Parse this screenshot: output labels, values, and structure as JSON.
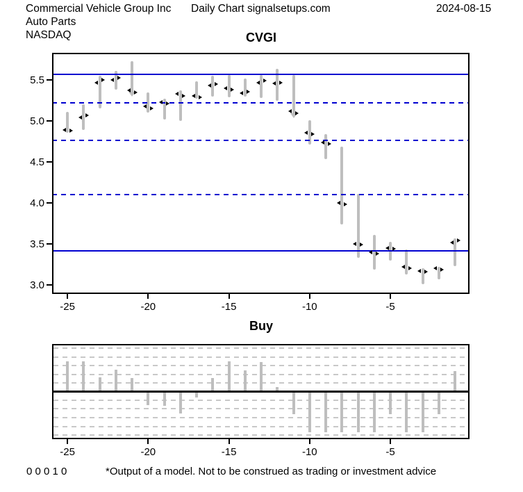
{
  "header": {
    "company": "Commercial Vehicle Group Inc",
    "sector": "Auto Parts",
    "exchange": "NASDAQ",
    "source": "Daily Chart signalsetups.com",
    "date": "2024-08-15"
  },
  "colors": {
    "line_blue": "#0000D0",
    "bar_gray": "#BEBEBE",
    "grid_gray": "#C8C8C8",
    "zero_black": "#000000",
    "text": "#000000"
  },
  "chart_data": [
    {
      "type": "ohlc-bar",
      "title": "CVGI",
      "xlabel": "",
      "ylabel": "",
      "xlim": [
        -25.95,
        -0.1
      ],
      "ylim": [
        2.89,
        5.831
      ],
      "x_ticks": [
        {
          "label": "-25",
          "value": -25
        },
        {
          "label": "-20",
          "value": -20
        },
        {
          "label": "-15",
          "value": -15
        },
        {
          "label": "-10",
          "value": -10
        },
        {
          "label": "-5",
          "value": -5
        }
      ],
      "y_ticks": [
        {
          "label": "5.5",
          "value": 5.5
        },
        {
          "label": "5.0",
          "value": 5.0
        },
        {
          "label": "4.5",
          "value": 4.5
        },
        {
          "label": "4.0",
          "value": 4.0
        },
        {
          "label": "3.5",
          "value": 3.5
        },
        {
          "label": "3.0",
          "value": 3.0
        }
      ],
      "hlines": [
        {
          "value": 5.57,
          "style": "solid"
        },
        {
          "value": 5.22,
          "style": "dashed"
        },
        {
          "value": 4.76,
          "style": "dashed"
        },
        {
          "value": 4.1,
          "style": "dashed"
        },
        {
          "value": 3.42,
          "style": "solid"
        }
      ],
      "bars": [
        {
          "t": -25,
          "open": 4.89,
          "high": 5.11,
          "low": 4.86,
          "close": 4.88,
          "signal": null
        },
        {
          "t": -24,
          "open": 5.04,
          "high": 5.2,
          "low": 4.89,
          "close": 5.07,
          "signal": null
        },
        {
          "t": -23,
          "open": 5.47,
          "high": 5.55,
          "low": 5.15,
          "close": 5.5,
          "signal": null
        },
        {
          "t": -22,
          "open": 5.5,
          "high": 5.61,
          "low": 5.38,
          "close": 5.53,
          "signal": null
        },
        {
          "t": -21,
          "open": 5.37,
          "high": 5.73,
          "low": 5.34,
          "close": 5.35,
          "signal": "down"
        },
        {
          "t": -20,
          "open": 5.18,
          "high": 5.35,
          "low": 5.1,
          "close": 5.15,
          "signal": null
        },
        {
          "t": -19,
          "open": 5.23,
          "high": 5.27,
          "low": 5.02,
          "close": 5.21,
          "signal": null
        },
        {
          "t": -18,
          "open": 5.33,
          "high": 5.37,
          "low": 5.0,
          "close": 5.31,
          "signal": null
        },
        {
          "t": -17,
          "open": 5.31,
          "high": 5.48,
          "low": 5.27,
          "close": 5.29,
          "signal": null
        },
        {
          "t": -16,
          "open": 5.43,
          "high": 5.55,
          "low": 5.3,
          "close": 5.45,
          "signal": null
        },
        {
          "t": -15,
          "open": 5.4,
          "high": 5.56,
          "low": 5.29,
          "close": 5.38,
          "signal": null
        },
        {
          "t": -14,
          "open": 5.34,
          "high": 5.52,
          "low": 5.3,
          "close": 5.36,
          "signal": null
        },
        {
          "t": -13,
          "open": 5.47,
          "high": 5.56,
          "low": 5.28,
          "close": 5.49,
          "signal": null
        },
        {
          "t": -12,
          "open": 5.46,
          "high": 5.64,
          "low": 5.25,
          "close": 5.47,
          "signal": null
        },
        {
          "t": -11,
          "open": 5.12,
          "high": 5.56,
          "low": 5.08,
          "close": 5.09,
          "signal": "down"
        },
        {
          "t": -10,
          "open": 4.86,
          "high": 5.01,
          "low": 4.71,
          "close": 4.84,
          "signal": null
        },
        {
          "t": -9,
          "open": 4.74,
          "high": 4.84,
          "low": 4.53,
          "close": 4.72,
          "signal": null
        },
        {
          "t": -8,
          "open": 4.0,
          "high": 4.69,
          "low": 3.74,
          "close": 3.98,
          "signal": null
        },
        {
          "t": -7,
          "open": 3.5,
          "high": 4.11,
          "low": 3.33,
          "close": 3.49,
          "signal": null
        },
        {
          "t": -6,
          "open": 3.4,
          "high": 3.61,
          "low": 3.19,
          "close": 3.38,
          "signal": null
        },
        {
          "t": -5,
          "open": 3.45,
          "high": 3.53,
          "low": 3.3,
          "close": 3.44,
          "signal": null
        },
        {
          "t": -4,
          "open": 3.22,
          "high": 3.43,
          "low": 3.13,
          "close": 3.2,
          "signal": null
        },
        {
          "t": -3,
          "open": 3.17,
          "high": 3.2,
          "low": 3.01,
          "close": 3.16,
          "signal": null
        },
        {
          "t": -2,
          "open": 3.2,
          "high": 3.22,
          "low": 3.07,
          "close": 3.19,
          "signal": null
        },
        {
          "t": -1,
          "open": 3.52,
          "high": 3.57,
          "low": 3.23,
          "close": 3.54,
          "signal": null
        }
      ]
    },
    {
      "type": "bar",
      "title": "Buy",
      "xlim": [
        -25.95,
        -0.1
      ],
      "ylim": [
        -1,
        1
      ],
      "x_ticks": [
        {
          "label": "-25",
          "value": -25
        },
        {
          "label": "-20",
          "value": -20
        },
        {
          "label": "-15",
          "value": -15
        },
        {
          "label": "-10",
          "value": -10
        },
        {
          "label": "-5",
          "value": -5
        }
      ],
      "grid_lines": [
        0.91,
        0.73,
        0.55,
        0.36,
        0.18,
        -0.18,
        -0.36,
        -0.55,
        -0.73,
        -0.91
      ],
      "zero_line": true,
      "x": [
        -25,
        -24,
        -23,
        -22,
        -21,
        -20,
        -19,
        -18,
        -17,
        -16,
        -15,
        -14,
        -13,
        -12,
        -11,
        -10,
        -9,
        -8,
        -7,
        -6,
        -5,
        -4,
        -3,
        -2,
        -1
      ],
      "values": [
        0.64,
        0.64,
        0.3,
        0.46,
        0.29,
        -0.29,
        -0.3,
        -0.46,
        -0.12,
        0.29,
        0.64,
        0.45,
        0.62,
        0.1,
        -0.48,
        -0.85,
        -0.85,
        -0.85,
        -0.85,
        -0.85,
        -0.48,
        -0.85,
        -0.85,
        -0.48,
        0.43
      ]
    }
  ],
  "footer": {
    "signals": "0 0 0 1 0",
    "disclaimer": "*Output of a model. Not to be construed as trading or investment advice"
  }
}
